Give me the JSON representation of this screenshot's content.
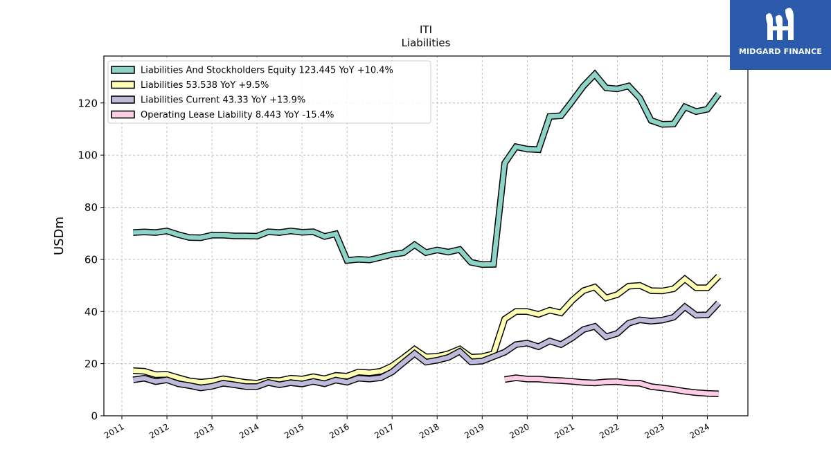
{
  "logo": {
    "text": "MIDGARD FINANCE"
  },
  "chart_data": {
    "type": "line",
    "title": "ITI",
    "subtitle": "Liabilities",
    "xlabel": "",
    "ylabel": "USDm",
    "xlim": [
      2010.6,
      2024.9
    ],
    "ylim": [
      0,
      138
    ],
    "yticks": [
      0,
      20,
      40,
      60,
      80,
      100,
      120
    ],
    "xticks": [
      2011,
      2012,
      2013,
      2014,
      2015,
      2016,
      2017,
      2018,
      2019,
      2020,
      2021,
      2022,
      2023,
      2024
    ],
    "xtick_labels": [
      "2011",
      "2012",
      "2013",
      "2014",
      "2015",
      "2016",
      "2017",
      "2018",
      "2019",
      "2020",
      "2021",
      "2022",
      "2023",
      "2024"
    ],
    "grid": true,
    "legend_position": "top-left",
    "series": [
      {
        "name": "Liabilities And Stockholders Equity",
        "legend": "Liabilities And Stockholders Equity  123.445 YoY +10.4%",
        "color": "#8dd3c7",
        "x": [
          2011.25,
          2011.5,
          2011.75,
          2012.0,
          2012.25,
          2012.5,
          2012.75,
          2013.0,
          2013.25,
          2013.5,
          2013.75,
          2014.0,
          2014.25,
          2014.5,
          2014.75,
          2015.0,
          2015.25,
          2015.5,
          2015.75,
          2016.0,
          2016.25,
          2016.5,
          2016.75,
          2017.0,
          2017.25,
          2017.5,
          2017.75,
          2018.0,
          2018.25,
          2018.5,
          2018.75,
          2019.0,
          2019.25,
          2019.5,
          2019.75,
          2020.0,
          2020.25,
          2020.5,
          2020.75,
          2021.0,
          2021.25,
          2021.5,
          2021.75,
          2022.0,
          2022.25,
          2022.5,
          2022.75,
          2023.0,
          2023.25,
          2023.5,
          2023.75,
          2024.0,
          2024.25
        ],
        "y": [
          70.3,
          70.5,
          70.3,
          70.9,
          69.5,
          68.4,
          68.3,
          69.3,
          69.3,
          69.0,
          69.0,
          68.9,
          70.6,
          70.3,
          70.9,
          70.4,
          70.6,
          68.8,
          69.8,
          59.6,
          60.0,
          59.8,
          60.8,
          61.9,
          62.5,
          65.6,
          62.6,
          63.6,
          62.8,
          63.8,
          58.9,
          58.0,
          58.1,
          96.9,
          103.2,
          102.3,
          102.1,
          114.8,
          115.1,
          120.7,
          126.5,
          131.0,
          125.8,
          125.4,
          126.5,
          121.9,
          113.3,
          111.8,
          111.9,
          118.5,
          116.7,
          117.6,
          123.4
        ]
      },
      {
        "name": "Liabilities",
        "legend": "Liabilities  53.538 YoY +9.5%",
        "color": "#ffffb3",
        "x": [
          2011.25,
          2011.5,
          2011.75,
          2012.0,
          2012.25,
          2012.5,
          2012.75,
          2013.0,
          2013.25,
          2013.5,
          2013.75,
          2014.0,
          2014.25,
          2014.5,
          2014.75,
          2015.0,
          2015.25,
          2015.5,
          2015.75,
          2016.0,
          2016.25,
          2016.5,
          2016.75,
          2017.0,
          2017.25,
          2017.5,
          2017.75,
          2018.0,
          2018.25,
          2018.5,
          2018.75,
          2019.0,
          2019.25,
          2019.5,
          2019.75,
          2020.0,
          2020.25,
          2020.5,
          2020.75,
          2021.0,
          2021.25,
          2021.5,
          2021.75,
          2022.0,
          2022.25,
          2022.5,
          2022.75,
          2023.0,
          2023.25,
          2023.5,
          2023.75,
          2024.0,
          2024.25
        ],
        "y": [
          17.3,
          17.1,
          15.8,
          15.9,
          14.6,
          13.4,
          12.9,
          13.3,
          14.2,
          13.5,
          12.8,
          12.5,
          13.6,
          13.5,
          14.4,
          14.1,
          15.0,
          14.2,
          15.5,
          15.2,
          16.8,
          16.5,
          17.1,
          19.1,
          22.2,
          25.5,
          22.6,
          22.8,
          23.8,
          25.6,
          22.5,
          22.7,
          23.8,
          37.1,
          40.0,
          40.0,
          38.9,
          40.5,
          39.5,
          44.3,
          48.0,
          49.4,
          45.2,
          46.5,
          49.7,
          50.0,
          48.0,
          47.9,
          48.7,
          52.5,
          49.1,
          49.1,
          53.5
        ]
      },
      {
        "name": "Liabilities Current",
        "legend": "Liabilities Current  43.33 YoY +13.9%",
        "color": "#bebada",
        "x": [
          2011.25,
          2011.5,
          2011.75,
          2012.0,
          2012.25,
          2012.5,
          2012.75,
          2013.0,
          2013.25,
          2013.5,
          2013.75,
          2014.0,
          2014.25,
          2014.5,
          2014.75,
          2015.0,
          2015.25,
          2015.5,
          2015.75,
          2016.0,
          2016.25,
          2016.5,
          2016.75,
          2017.0,
          2017.25,
          2017.5,
          2017.75,
          2018.0,
          2018.25,
          2018.5,
          2018.75,
          2019.0,
          2019.25,
          2019.5,
          2019.75,
          2020.0,
          2020.25,
          2020.5,
          2020.75,
          2021.0,
          2021.25,
          2021.5,
          2021.75,
          2022.0,
          2022.25,
          2022.5,
          2022.75,
          2023.0,
          2023.25,
          2023.5,
          2023.75,
          2024.0,
          2024.25
        ],
        "y": [
          13.8,
          14.4,
          13.1,
          13.8,
          12.3,
          11.6,
          10.7,
          11.3,
          12.5,
          11.9,
          11.2,
          11.2,
          12.8,
          11.9,
          12.7,
          12.2,
          13.2,
          12.3,
          13.7,
          12.9,
          14.4,
          14.1,
          14.6,
          16.8,
          20.4,
          23.9,
          20.6,
          21.3,
          22.4,
          24.7,
          20.7,
          21.0,
          22.7,
          24.4,
          27.3,
          27.9,
          26.5,
          28.7,
          27.3,
          29.9,
          33.1,
          34.3,
          30.3,
          31.6,
          35.5,
          36.8,
          36.3,
          36.7,
          37.8,
          41.8,
          38.6,
          38.7,
          43.3
        ]
      },
      {
        "name": "Operating Lease Liability",
        "legend": "Operating Lease Liability  8.443 YoY -15.4%",
        "color": "#fccde5",
        "x": [
          2019.5,
          2019.75,
          2020.0,
          2020.25,
          2020.5,
          2020.75,
          2021.0,
          2021.25,
          2021.5,
          2021.75,
          2022.0,
          2022.25,
          2022.5,
          2022.75,
          2023.0,
          2023.25,
          2023.5,
          2023.75,
          2024.0,
          2024.25
        ],
        "y": [
          13.9,
          14.6,
          14.1,
          14.1,
          13.7,
          13.5,
          13.2,
          12.8,
          12.6,
          13.0,
          13.1,
          12.6,
          12.5,
          11.2,
          10.7,
          10.1,
          9.4,
          8.9,
          8.6,
          8.4
        ]
      }
    ]
  }
}
